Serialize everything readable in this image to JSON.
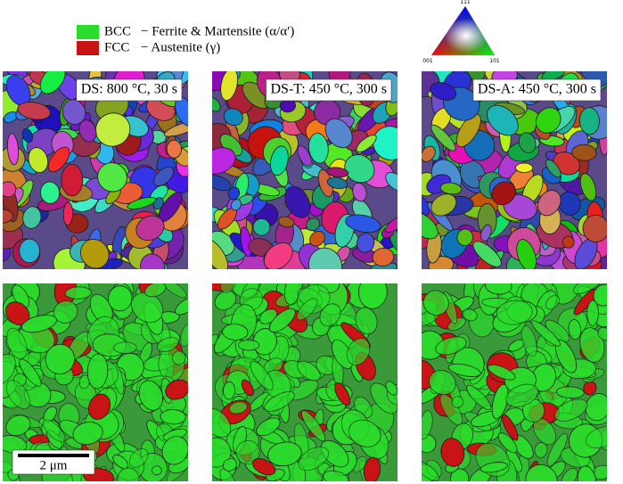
{
  "legend": [
    {
      "phase": "BCC",
      "description": "− Ferrite & Martensite (α/α′)",
      "color": "#2bdc2b"
    },
    {
      "phase": "FCC",
      "description": "− Austenite (γ)",
      "color": "#c81414"
    }
  ],
  "ipf_triangle": {
    "corners": [
      "111",
      "001",
      "101"
    ]
  },
  "panels": [
    {
      "label": "DS: 800 °C, 30 s"
    },
    {
      "label": "DS-T: 450 °C, 300 s"
    },
    {
      "label": "DS-A: 450 °C, 300 s"
    }
  ],
  "scale_bar": "2 μm"
}
